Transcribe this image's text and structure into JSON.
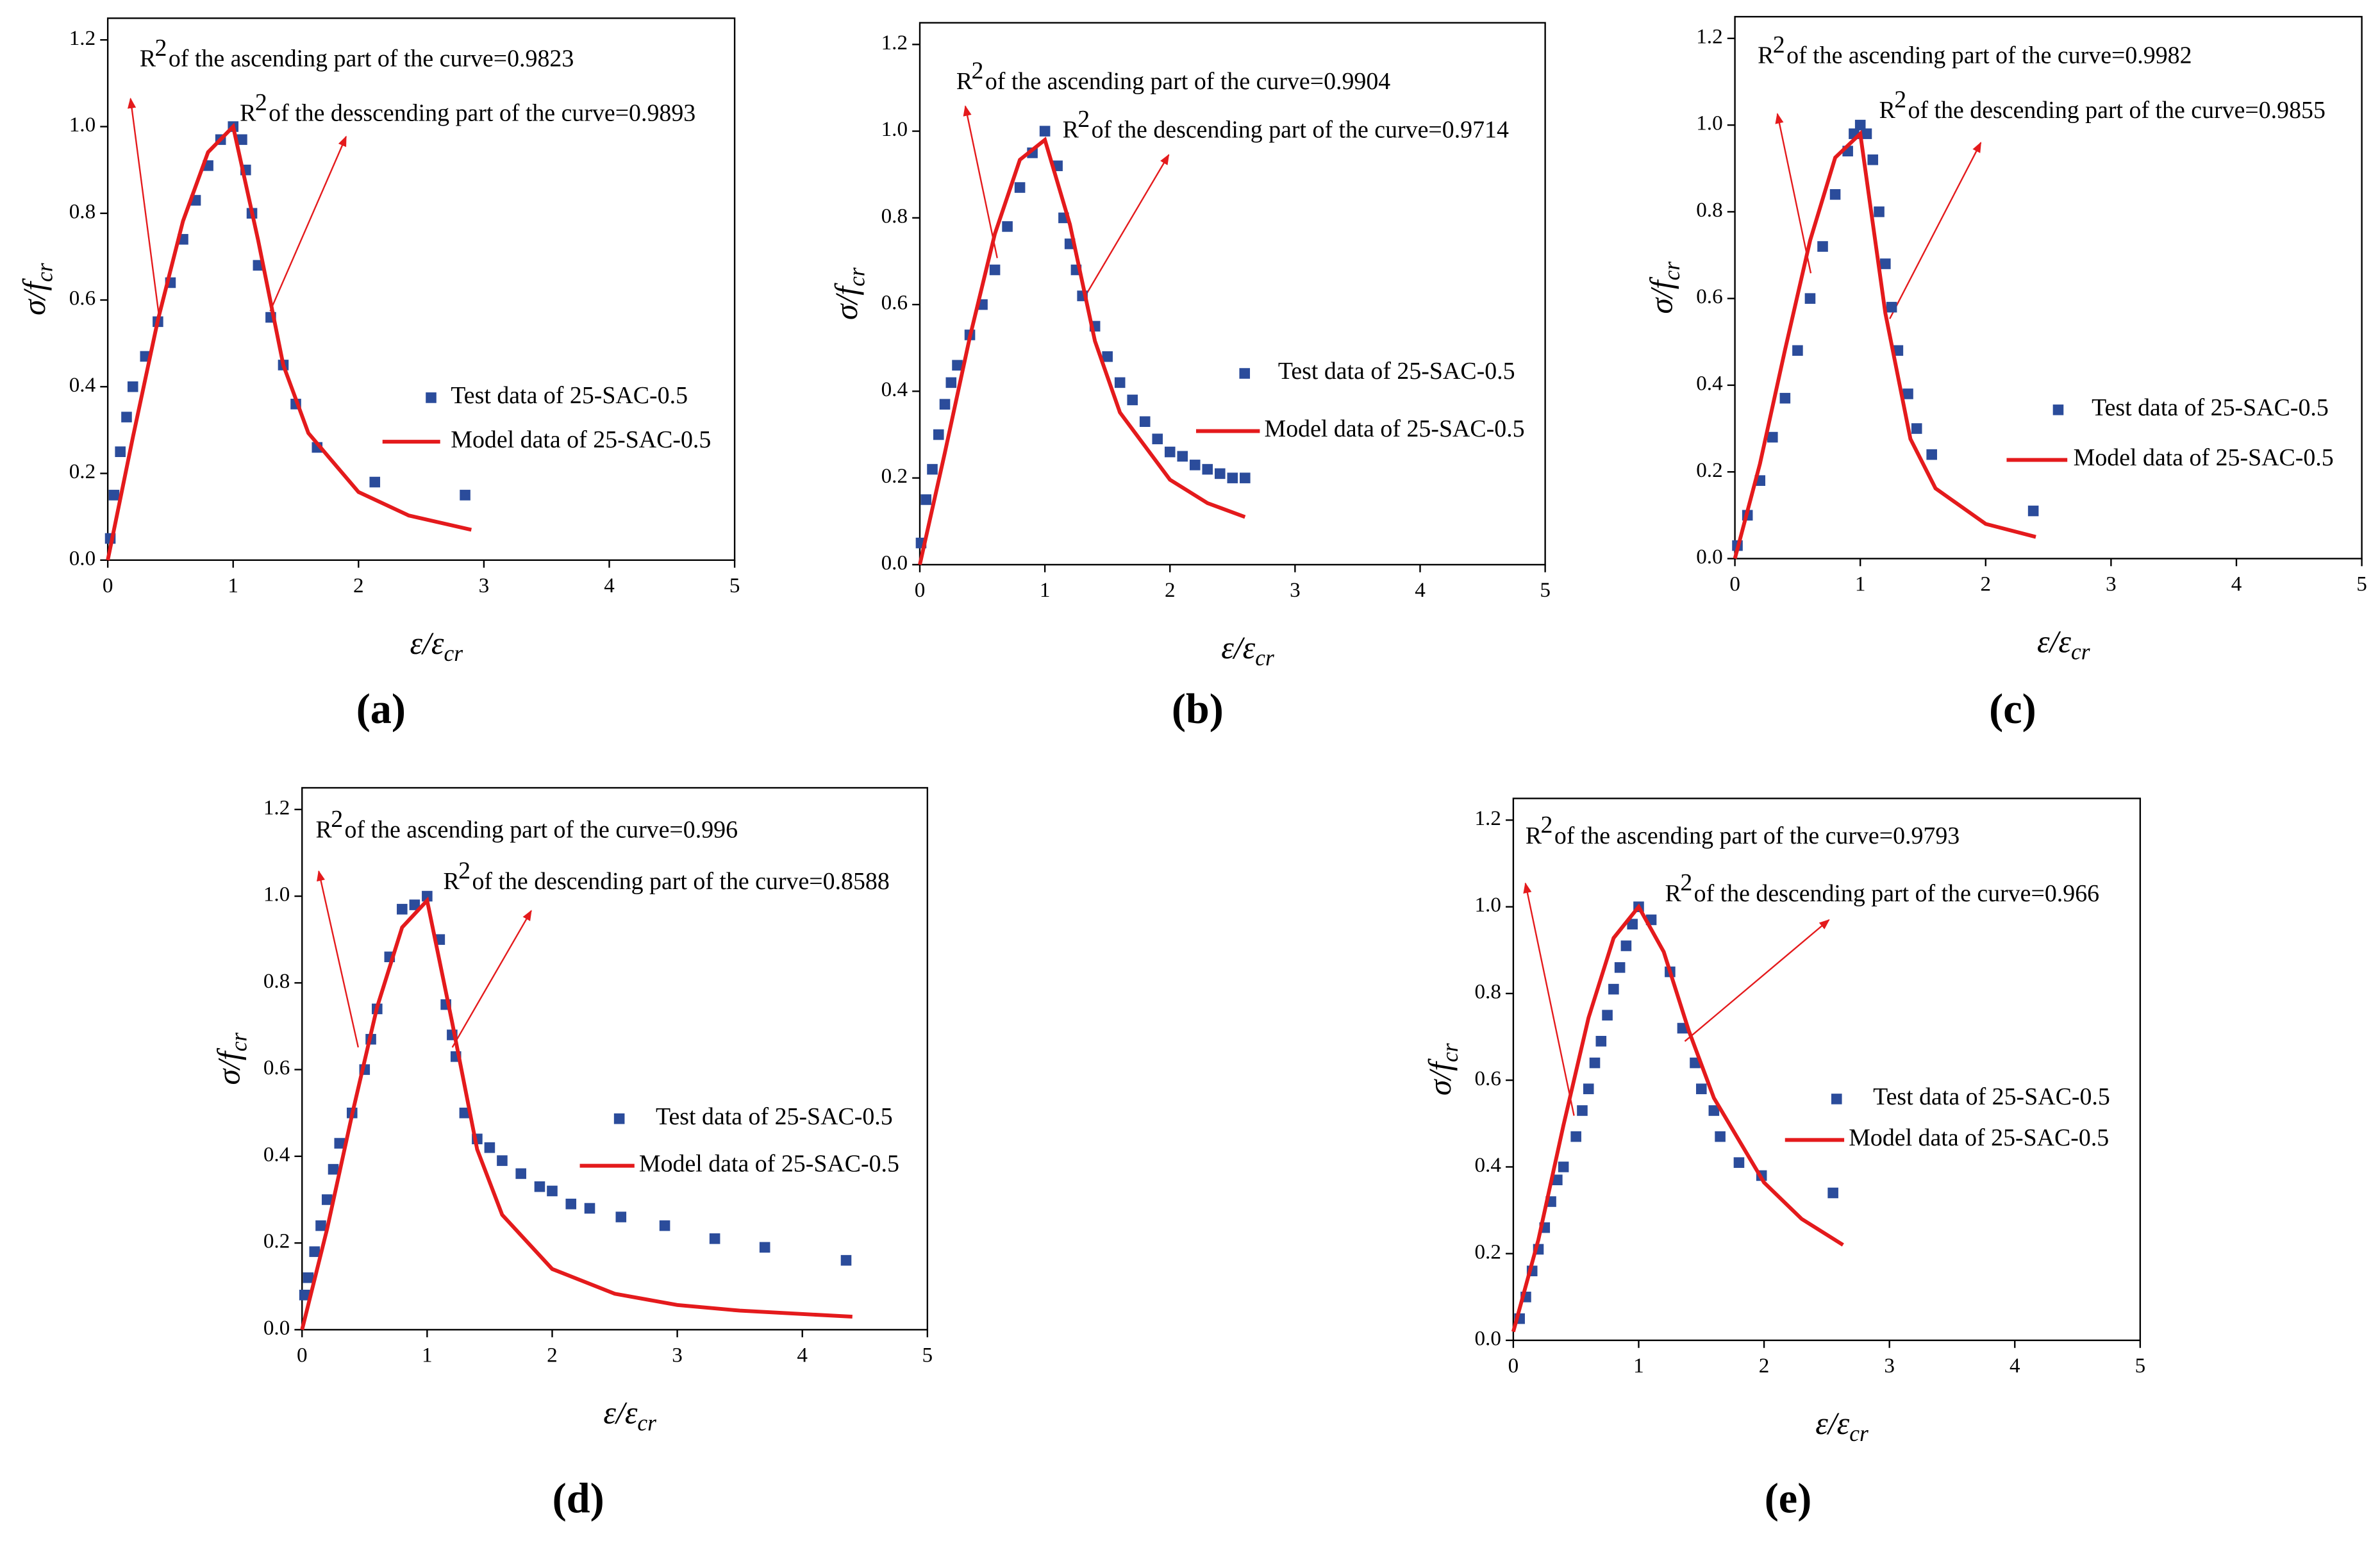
{
  "chart_data": [
    {
      "type": "scatter",
      "title": "(a)",
      "x_label": {
        "base": "ε/ε",
        "sub": "cr"
      },
      "y_label": {
        "base": "σ/f",
        "sub": "cr"
      },
      "annotations": [
        {
          "prefix": "R",
          "sup": "2",
          "text": "of the ascending part of the curve=0.9823"
        },
        {
          "prefix": "R",
          "sup": "2",
          "text": "of the desscending part of the curve=0.9893"
        }
      ],
      "xlim": [
        0,
        5
      ],
      "xticks": [
        0,
        1,
        2,
        3,
        4,
        5
      ],
      "ylim": [
        0,
        1.25
      ],
      "yticks": [
        {
          "value": 0,
          "label": "0.0"
        },
        0.2,
        0.4,
        0.6,
        0.8,
        {
          "value": 1,
          "label": "1.0"
        },
        1.2
      ],
      "series": [
        {
          "name": "Test data of 25-SAC-0.5",
          "color": "#2b4c9b",
          "marker": "square",
          "x": [
            0.02,
            0.05,
            0.1,
            0.15,
            0.2,
            0.3,
            0.4,
            0.5,
            0.6,
            0.7,
            0.8,
            0.9,
            1.0,
            1.07,
            1.1,
            1.15,
            1.2,
            1.3,
            1.4,
            1.5,
            1.67,
            2.13,
            2.85
          ],
          "values": [
            0.05,
            0.15,
            0.25,
            0.33,
            0.4,
            0.47,
            0.55,
            0.64,
            0.74,
            0.83,
            0.91,
            0.97,
            1.0,
            0.97,
            0.9,
            0.8,
            0.68,
            0.56,
            0.45,
            0.36,
            0.26,
            0.18,
            0.15
          ]
        },
        {
          "name": "Model data of 25-SAC-0.5",
          "color": "#e41a1c",
          "marker": "line",
          "x": [
            0,
            0.2,
            0.4,
            0.6,
            0.8,
            1.0,
            1.2,
            1.4,
            1.6,
            2.0,
            2.4,
            2.9
          ],
          "values": [
            0,
            0.283,
            0.554,
            0.782,
            0.941,
            1.0,
            0.737,
            0.45,
            0.293,
            0.157,
            0.103,
            0.07
          ]
        }
      ]
    },
    {
      "type": "scatter",
      "title": "(b)",
      "x_label": {
        "base": "ε/ε",
        "sub": "cr"
      },
      "y_label": {
        "base": "σ/f",
        "sub": "cr"
      },
      "annotations": [
        {
          "prefix": "R",
          "sup": "2",
          "text": "of the ascending part of the curve=0.9904"
        },
        {
          "prefix": "R",
          "sup": "2",
          "text": "of the descending part of the curve=0.9714"
        }
      ],
      "xlim": [
        0,
        5
      ],
      "xticks": [
        0,
        1,
        2,
        3,
        4,
        5
      ],
      "ylim": [
        0,
        1.25
      ],
      "yticks": [
        {
          "value": 0,
          "label": "0.0"
        },
        0.2,
        0.4,
        0.6,
        0.8,
        {
          "value": 1,
          "label": "1.0"
        },
        1.2
      ],
      "series": [
        {
          "name": "Test data of 25-SAC-0.5",
          "color": "#2b4c9b",
          "marker": "square",
          "x": [
            0.01,
            0.05,
            0.1,
            0.15,
            0.2,
            0.25,
            0.3,
            0.4,
            0.5,
            0.6,
            0.7,
            0.8,
            0.9,
            1.0,
            1.1,
            1.15,
            1.2,
            1.25,
            1.3,
            1.4,
            1.5,
            1.6,
            1.7,
            1.8,
            1.9,
            2.0,
            2.1,
            2.2,
            2.3,
            2.4,
            2.5,
            2.6
          ],
          "values": [
            0.05,
            0.15,
            0.22,
            0.3,
            0.37,
            0.42,
            0.46,
            0.53,
            0.6,
            0.68,
            0.78,
            0.87,
            0.95,
            1.0,
            0.92,
            0.8,
            0.74,
            0.68,
            0.62,
            0.55,
            0.48,
            0.42,
            0.38,
            0.33,
            0.29,
            0.26,
            0.25,
            0.23,
            0.22,
            0.21,
            0.2,
            0.2
          ]
        },
        {
          "name": "Model data of 25-SAC-0.5",
          "color": "#e41a1c",
          "marker": "line",
          "x": [
            0,
            0.2,
            0.4,
            0.6,
            0.8,
            1.0,
            1.2,
            1.4,
            1.6,
            2.0,
            2.3,
            2.6
          ],
          "values": [
            0,
            0.258,
            0.525,
            0.763,
            0.934,
            0.98,
            0.785,
            0.516,
            0.351,
            0.196,
            0.142,
            0.11
          ]
        }
      ]
    },
    {
      "type": "scatter",
      "title": "(c)",
      "x_label": {
        "base": "ε/ε",
        "sub": "cr"
      },
      "y_label": {
        "base": "σ/f",
        "sub": "cr"
      },
      "annotations": [
        {
          "prefix": "R",
          "sup": "2",
          "text": "of the ascending part of the curve=0.9982"
        },
        {
          "prefix": "R",
          "sup": "2",
          "text": "of the descending part of the curve=0.9855"
        }
      ],
      "xlim": [
        0,
        5
      ],
      "xticks": [
        0,
        1,
        2,
        3,
        4,
        5
      ],
      "ylim": [
        0,
        1.25
      ],
      "yticks": [
        {
          "value": 0,
          "label": "0.0"
        },
        0.2,
        0.4,
        0.6,
        0.8,
        {
          "value": 1,
          "label": "1.0"
        },
        1.2
      ],
      "series": [
        {
          "name": "Test data of 25-SAC-0.5",
          "color": "#2b4c9b",
          "marker": "square",
          "x": [
            0.02,
            0.1,
            0.2,
            0.3,
            0.4,
            0.5,
            0.6,
            0.7,
            0.8,
            0.9,
            0.95,
            1.0,
            1.05,
            1.1,
            1.15,
            1.2,
            1.25,
            1.3,
            1.38,
            1.45,
            1.57,
            2.38
          ],
          "values": [
            0.03,
            0.1,
            0.18,
            0.28,
            0.37,
            0.48,
            0.6,
            0.72,
            0.84,
            0.94,
            0.98,
            1.0,
            0.98,
            0.92,
            0.8,
            0.68,
            0.58,
            0.48,
            0.38,
            0.3,
            0.24,
            0.11
          ]
        },
        {
          "name": "Model data of 25-SAC-0.5",
          "color": "#e41a1c",
          "marker": "line",
          "x": [
            0,
            0.2,
            0.4,
            0.6,
            0.8,
            1.0,
            1.2,
            1.4,
            1.6,
            2.0,
            2.4
          ],
          "values": [
            0,
            0.219,
            0.482,
            0.734,
            0.925,
            0.98,
            0.566,
            0.276,
            0.162,
            0.08,
            0.05
          ]
        }
      ]
    },
    {
      "type": "scatter",
      "title": "(d)",
      "x_label": {
        "base": "ε/ε",
        "sub": "cr"
      },
      "y_label": {
        "base": "σ/f",
        "sub": "cr"
      },
      "annotations": [
        {
          "prefix": "R",
          "sup": "2",
          "text": "of the ascending part of the curve=0.996"
        },
        {
          "prefix": "R",
          "sup": "2",
          "text": "of the descending part of the curve=0.8588"
        }
      ],
      "xlim": [
        0,
        5
      ],
      "xticks": [
        0,
        1,
        2,
        3,
        4,
        5
      ],
      "ylim": [
        0,
        1.25
      ],
      "yticks": [
        {
          "value": 0,
          "label": "0.0"
        },
        0.2,
        0.4,
        0.6,
        0.8,
        {
          "value": 1,
          "label": "1.0"
        },
        1.2
      ],
      "series": [
        {
          "name": "Test data of 25-SAC-0.5",
          "color": "#2b4c9b",
          "marker": "square",
          "x": [
            0.02,
            0.05,
            0.1,
            0.15,
            0.2,
            0.25,
            0.3,
            0.4,
            0.5,
            0.55,
            0.6,
            0.7,
            0.8,
            0.9,
            1.0,
            1.1,
            1.15,
            1.2,
            1.23,
            1.3,
            1.4,
            1.5,
            1.6,
            1.75,
            1.9,
            2.0,
            2.15,
            2.3,
            2.55,
            2.9,
            3.3,
            3.7,
            4.35
          ],
          "values": [
            0.08,
            0.12,
            0.18,
            0.24,
            0.3,
            0.37,
            0.43,
            0.5,
            0.6,
            0.67,
            0.74,
            0.86,
            0.97,
            0.98,
            1.0,
            0.9,
            0.75,
            0.68,
            0.63,
            0.5,
            0.44,
            0.42,
            0.39,
            0.36,
            0.33,
            0.32,
            0.29,
            0.28,
            0.26,
            0.24,
            0.21,
            0.19,
            0.16
          ]
        },
        {
          "name": "Model data of 25-SAC-0.5",
          "color": "#e41a1c",
          "marker": "line",
          "x": [
            0,
            0.2,
            0.4,
            0.6,
            0.8,
            1.0,
            1.2,
            1.4,
            1.6,
            2.0,
            2.5,
            3.0,
            3.5,
            4.4
          ],
          "values": [
            0,
            0.232,
            0.496,
            0.744,
            0.928,
            0.99,
            0.709,
            0.416,
            0.265,
            0.14,
            0.083,
            0.057,
            0.044,
            0.03
          ]
        }
      ]
    },
    {
      "type": "scatter",
      "title": "(e)",
      "x_label": {
        "base": "ε/ε",
        "sub": "cr"
      },
      "y_label": {
        "base": "σ/f",
        "sub": "cr"
      },
      "annotations": [
        {
          "prefix": "R",
          "sup": "2",
          "text": "of the ascending part of the curve=0.9793"
        },
        {
          "prefix": "R",
          "sup": "2",
          "text": "of the descending part of the curve=0.966"
        }
      ],
      "xlim": [
        0,
        5
      ],
      "xticks": [
        0,
        1,
        2,
        3,
        4,
        5
      ],
      "ylim": [
        0,
        1.25
      ],
      "yticks": [
        {
          "value": 0,
          "label": "0.0"
        },
        0.2,
        0.4,
        0.6,
        0.8,
        {
          "value": 1,
          "label": "1.0"
        },
        1.2
      ],
      "series": [
        {
          "name": "Test data of 25-SAC-0.5",
          "color": "#2b4c9b",
          "marker": "square",
          "x": [
            0.05,
            0.1,
            0.15,
            0.2,
            0.25,
            0.3,
            0.35,
            0.4,
            0.5,
            0.55,
            0.6,
            0.65,
            0.7,
            0.75,
            0.8,
            0.85,
            0.9,
            0.95,
            1.0,
            1.1,
            1.25,
            1.35,
            1.45,
            1.5,
            1.6,
            1.65,
            1.8,
            1.98,
            2.55
          ],
          "values": [
            0.05,
            0.1,
            0.16,
            0.21,
            0.26,
            0.32,
            0.37,
            0.4,
            0.47,
            0.53,
            0.58,
            0.64,
            0.69,
            0.75,
            0.81,
            0.86,
            0.91,
            0.96,
            1.0,
            0.97,
            0.85,
            0.72,
            0.64,
            0.58,
            0.53,
            0.47,
            0.41,
            0.38,
            0.34
          ]
        },
        {
          "name": "Model data of 25-SAC-0.5",
          "color": "#e41a1c",
          "marker": "line",
          "x": [
            0,
            0.2,
            0.4,
            0.6,
            0.8,
            1.0,
            1.2,
            1.4,
            1.6,
            2.0,
            2.3,
            2.63
          ],
          "values": [
            0.02,
            0.232,
            0.496,
            0.744,
            0.928,
            1.0,
            0.896,
            0.714,
            0.559,
            0.364,
            0.28,
            0.22
          ]
        }
      ]
    }
  ]
}
